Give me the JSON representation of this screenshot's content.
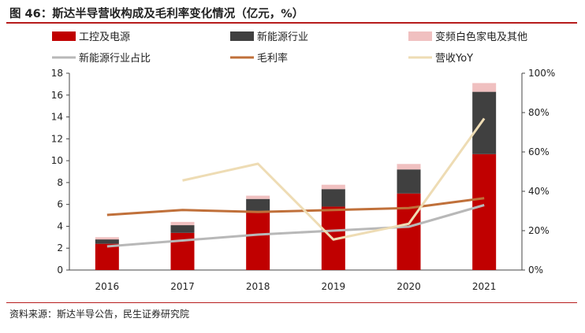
{
  "title": "图 46：斯达半导营收构成及毛利率变化情况（亿元，%）",
  "source": "资料来源：斯达半导公告，民生证券研究院",
  "chart_data": {
    "type": "bar",
    "stacked": true,
    "categories": [
      "2016",
      "2017",
      "2018",
      "2019",
      "2020",
      "2021"
    ],
    "series": [
      {
        "name": "工控及电源",
        "type": "bar",
        "axis": "left",
        "color": "#c00000",
        "values": [
          2.4,
          3.4,
          5.4,
          5.8,
          7.0,
          10.6
        ]
      },
      {
        "name": "新能源行业",
        "type": "bar",
        "axis": "left",
        "color": "#404040",
        "values": [
          0.4,
          0.7,
          1.1,
          1.6,
          2.2,
          5.7
        ]
      },
      {
        "name": "变频白色家电及其他",
        "type": "bar",
        "axis": "left",
        "color": "#f0c0c0",
        "values": [
          0.2,
          0.3,
          0.3,
          0.4,
          0.5,
          0.8
        ]
      },
      {
        "name": "新能源行业占比",
        "type": "line",
        "axis": "right",
        "color": "#b8b8b8",
        "values": [
          0.12,
          0.15,
          0.18,
          0.2,
          0.22,
          0.33
        ]
      },
      {
        "name": "毛利率",
        "type": "line",
        "axis": "right",
        "color": "#c0703a",
        "values": [
          0.28,
          0.305,
          0.295,
          0.305,
          0.315,
          0.365
        ]
      },
      {
        "name": "营收YoY",
        "type": "line",
        "axis": "right",
        "color": "#eedcb4",
        "values": [
          null,
          0.455,
          0.54,
          0.155,
          0.235,
          0.77
        ]
      }
    ],
    "ylim_left": [
      0,
      18
    ],
    "yticks_left": [
      "0",
      "2",
      "4",
      "6",
      "8",
      "10",
      "12",
      "14",
      "16",
      "18"
    ],
    "ylim_right": [
      0,
      1
    ],
    "yticks_right": [
      "0%",
      "20%",
      "40%",
      "60%",
      "80%",
      "100%"
    ],
    "legend_position": "top",
    "grid": false
  }
}
